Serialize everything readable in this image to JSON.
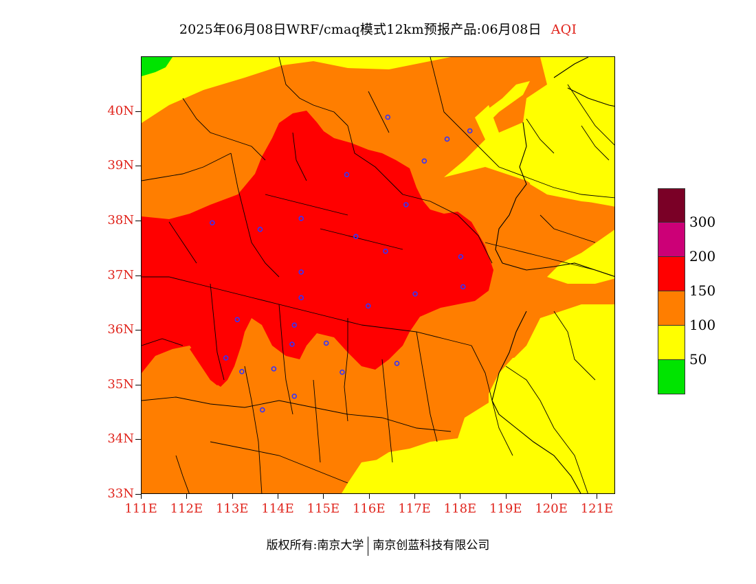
{
  "title": {
    "main": "2025年06月08日WRF/cmaq模式12km预报产品:06月08日",
    "variable": "AQI"
  },
  "axes": {
    "lat_labels": [
      "40N",
      "39N",
      "38N",
      "37N",
      "36N",
      "35N",
      "34N",
      "33N"
    ],
    "lon_labels": [
      "111E",
      "112E",
      "113E",
      "114E",
      "115E",
      "116E",
      "117E",
      "118E",
      "119E",
      "120E",
      "121E"
    ],
    "lon_range": [
      111,
      121.4
    ],
    "lat_range": [
      33,
      41
    ]
  },
  "legend": {
    "labels": [
      "300",
      "200",
      "150",
      "100",
      "50"
    ],
    "colors": [
      "#7a0026",
      "#cc0077",
      "#ff0000",
      "#ff7e00",
      "#ffff00",
      "#00e400"
    ]
  },
  "map": {
    "category_colors": {
      "good": "#00e400",
      "moderate": "#ffff00",
      "unhealthy_sensitive": "#ff7e00",
      "unhealthy": "#ff0000"
    },
    "station_color": "#3333ff",
    "stations": [
      {
        "lon": 116.4,
        "lat": 39.9
      },
      {
        "lon": 117.7,
        "lat": 39.5
      },
      {
        "lon": 117.2,
        "lat": 39.1
      },
      {
        "lon": 118.2,
        "lat": 39.65
      },
      {
        "lon": 115.5,
        "lat": 38.85
      },
      {
        "lon": 116.8,
        "lat": 38.3
      },
      {
        "lon": 114.5,
        "lat": 38.05
      },
      {
        "lon": 112.55,
        "lat": 37.97
      },
      {
        "lon": 113.6,
        "lat": 37.85
      },
      {
        "lon": 115.7,
        "lat": 37.72
      },
      {
        "lon": 116.35,
        "lat": 37.45
      },
      {
        "lon": 118.0,
        "lat": 37.35
      },
      {
        "lon": 114.5,
        "lat": 37.07
      },
      {
        "lon": 117.0,
        "lat": 36.67
      },
      {
        "lon": 118.05,
        "lat": 36.8
      },
      {
        "lon": 114.5,
        "lat": 36.6
      },
      {
        "lon": 115.97,
        "lat": 36.45
      },
      {
        "lon": 113.1,
        "lat": 36.2
      },
      {
        "lon": 114.35,
        "lat": 36.1
      },
      {
        "lon": 114.3,
        "lat": 35.75
      },
      {
        "lon": 115.05,
        "lat": 35.77
      },
      {
        "lon": 112.85,
        "lat": 35.5
      },
      {
        "lon": 113.9,
        "lat": 35.3
      },
      {
        "lon": 113.2,
        "lat": 35.25
      },
      {
        "lon": 115.4,
        "lat": 35.24
      },
      {
        "lon": 116.6,
        "lat": 35.4
      },
      {
        "lon": 114.35,
        "lat": 34.8
      },
      {
        "lon": 113.65,
        "lat": 34.55
      }
    ]
  },
  "footer": {
    "left": "版权所有:南京大学",
    "right": "南京创蓝科技有限公司"
  }
}
